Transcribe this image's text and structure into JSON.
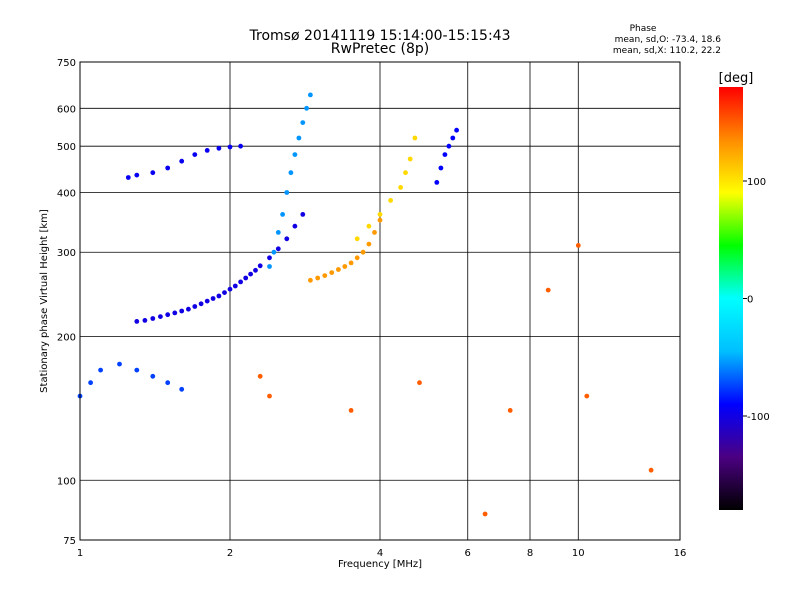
{
  "header": {
    "title_line1": "Tromsø 20141119 15:14:00-15:15:43",
    "title_line2": "RwPretec (8p)",
    "phase_title": "Phase",
    "phase_line1": "mean, sd,O: -73.4, 18.6",
    "phase_line2": "mean, sd,X: 110.2, 22.2"
  },
  "chart_data": {
    "type": "scatter",
    "xlabel": "Frequency [MHz]",
    "ylabel": "Stationary phase Virtual Height [km]",
    "x_scale": "log",
    "y_scale": "log",
    "xlim": [
      1,
      16
    ],
    "ylim": [
      75,
      750
    ],
    "x_ticks": [
      1,
      2,
      4,
      6,
      8,
      10,
      16
    ],
    "x_tick_labels": [
      "1",
      "2",
      "4",
      "6",
      "8",
      "10",
      "16"
    ],
    "y_ticks": [
      75,
      100,
      200,
      300,
      400,
      500,
      600,
      750
    ],
    "y_tick_labels": [
      "75",
      "100",
      "200",
      "300",
      "400",
      "500",
      "600",
      "750"
    ],
    "grid": true,
    "colorbar": {
      "label": "[deg]",
      "range": [
        -180,
        180
      ],
      "ticks": [
        100,
        0,
        -100
      ],
      "tick_labels": [
        "100",
        "0",
        "-100"
      ],
      "colors": [
        "#000000",
        "#4b0082",
        "#0000ff",
        "#00bfff",
        "#00ffff",
        "#00ff00",
        "#ffff00",
        "#ff8c00",
        "#ff0000"
      ]
    },
    "series": [
      {
        "trace_type": "O",
        "colormap_phase": -100,
        "x": [
          1.3,
          1.35,
          1.4,
          1.45,
          1.5,
          1.55,
          1.6,
          1.65,
          1.7,
          1.75,
          1.8,
          1.85,
          1.9,
          1.95,
          2.0,
          2.05,
          2.1,
          2.15,
          2.2,
          2.25,
          2.3,
          2.4,
          2.5,
          2.6,
          2.7,
          2.8
        ],
        "y": [
          215,
          216,
          218,
          220,
          222,
          224,
          226,
          228,
          231,
          234,
          237,
          240,
          243,
          247,
          251,
          255,
          260,
          265,
          270,
          275,
          281,
          292,
          305,
          320,
          340,
          360
        ]
      },
      {
        "trace_type": "O-upper",
        "colormap_phase": -95,
        "x": [
          1.25,
          1.3,
          1.4,
          1.5,
          1.6,
          1.7,
          1.8,
          1.9,
          2.0,
          2.1
        ],
        "y": [
          430,
          435,
          440,
          450,
          465,
          480,
          490,
          495,
          498,
          500
        ]
      },
      {
        "trace_type": "O-steep",
        "colormap_phase": -55,
        "x": [
          2.4,
          2.45,
          2.5,
          2.55,
          2.6,
          2.65,
          2.7,
          2.75,
          2.8,
          2.85,
          2.9
        ],
        "y": [
          280,
          300,
          330,
          360,
          400,
          440,
          480,
          520,
          560,
          600,
          640
        ]
      },
      {
        "trace_type": "X",
        "colormap_phase": 130,
        "x": [
          2.9,
          3.0,
          3.1,
          3.2,
          3.3,
          3.4,
          3.5,
          3.6,
          3.7,
          3.8,
          3.9,
          4.0
        ],
        "y": [
          262,
          265,
          268,
          272,
          276,
          280,
          285,
          292,
          300,
          312,
          330,
          350
        ]
      },
      {
        "trace_type": "X-upper",
        "colormap_phase": 105,
        "x": [
          3.6,
          3.8,
          4.0,
          4.2,
          4.4,
          4.5,
          4.6,
          4.7
        ],
        "y": [
          320,
          340,
          360,
          385,
          410,
          440,
          470,
          520
        ]
      },
      {
        "trace_type": "O-high",
        "colormap_phase": -90,
        "x": [
          5.2,
          5.3,
          5.4,
          5.5,
          5.6,
          5.7
        ],
        "y": [
          420,
          450,
          480,
          500,
          520,
          540
        ]
      },
      {
        "trace_type": "low-band",
        "colormap_phase": -75,
        "x": [
          1.0,
          1.05,
          1.1,
          1.2,
          1.3,
          1.4,
          1.5,
          1.6
        ],
        "y": [
          150,
          160,
          170,
          175,
          170,
          165,
          160,
          155
        ]
      },
      {
        "trace_type": "sporadic",
        "colormap_phase": 150,
        "x": [
          2.3,
          2.4,
          3.5,
          4.8,
          6.5,
          7.3,
          8.7,
          10.0,
          10.4,
          14.0
        ],
        "y": [
          165,
          150,
          140,
          160,
          85,
          140,
          250,
          310,
          150,
          105
        ]
      }
    ]
  }
}
